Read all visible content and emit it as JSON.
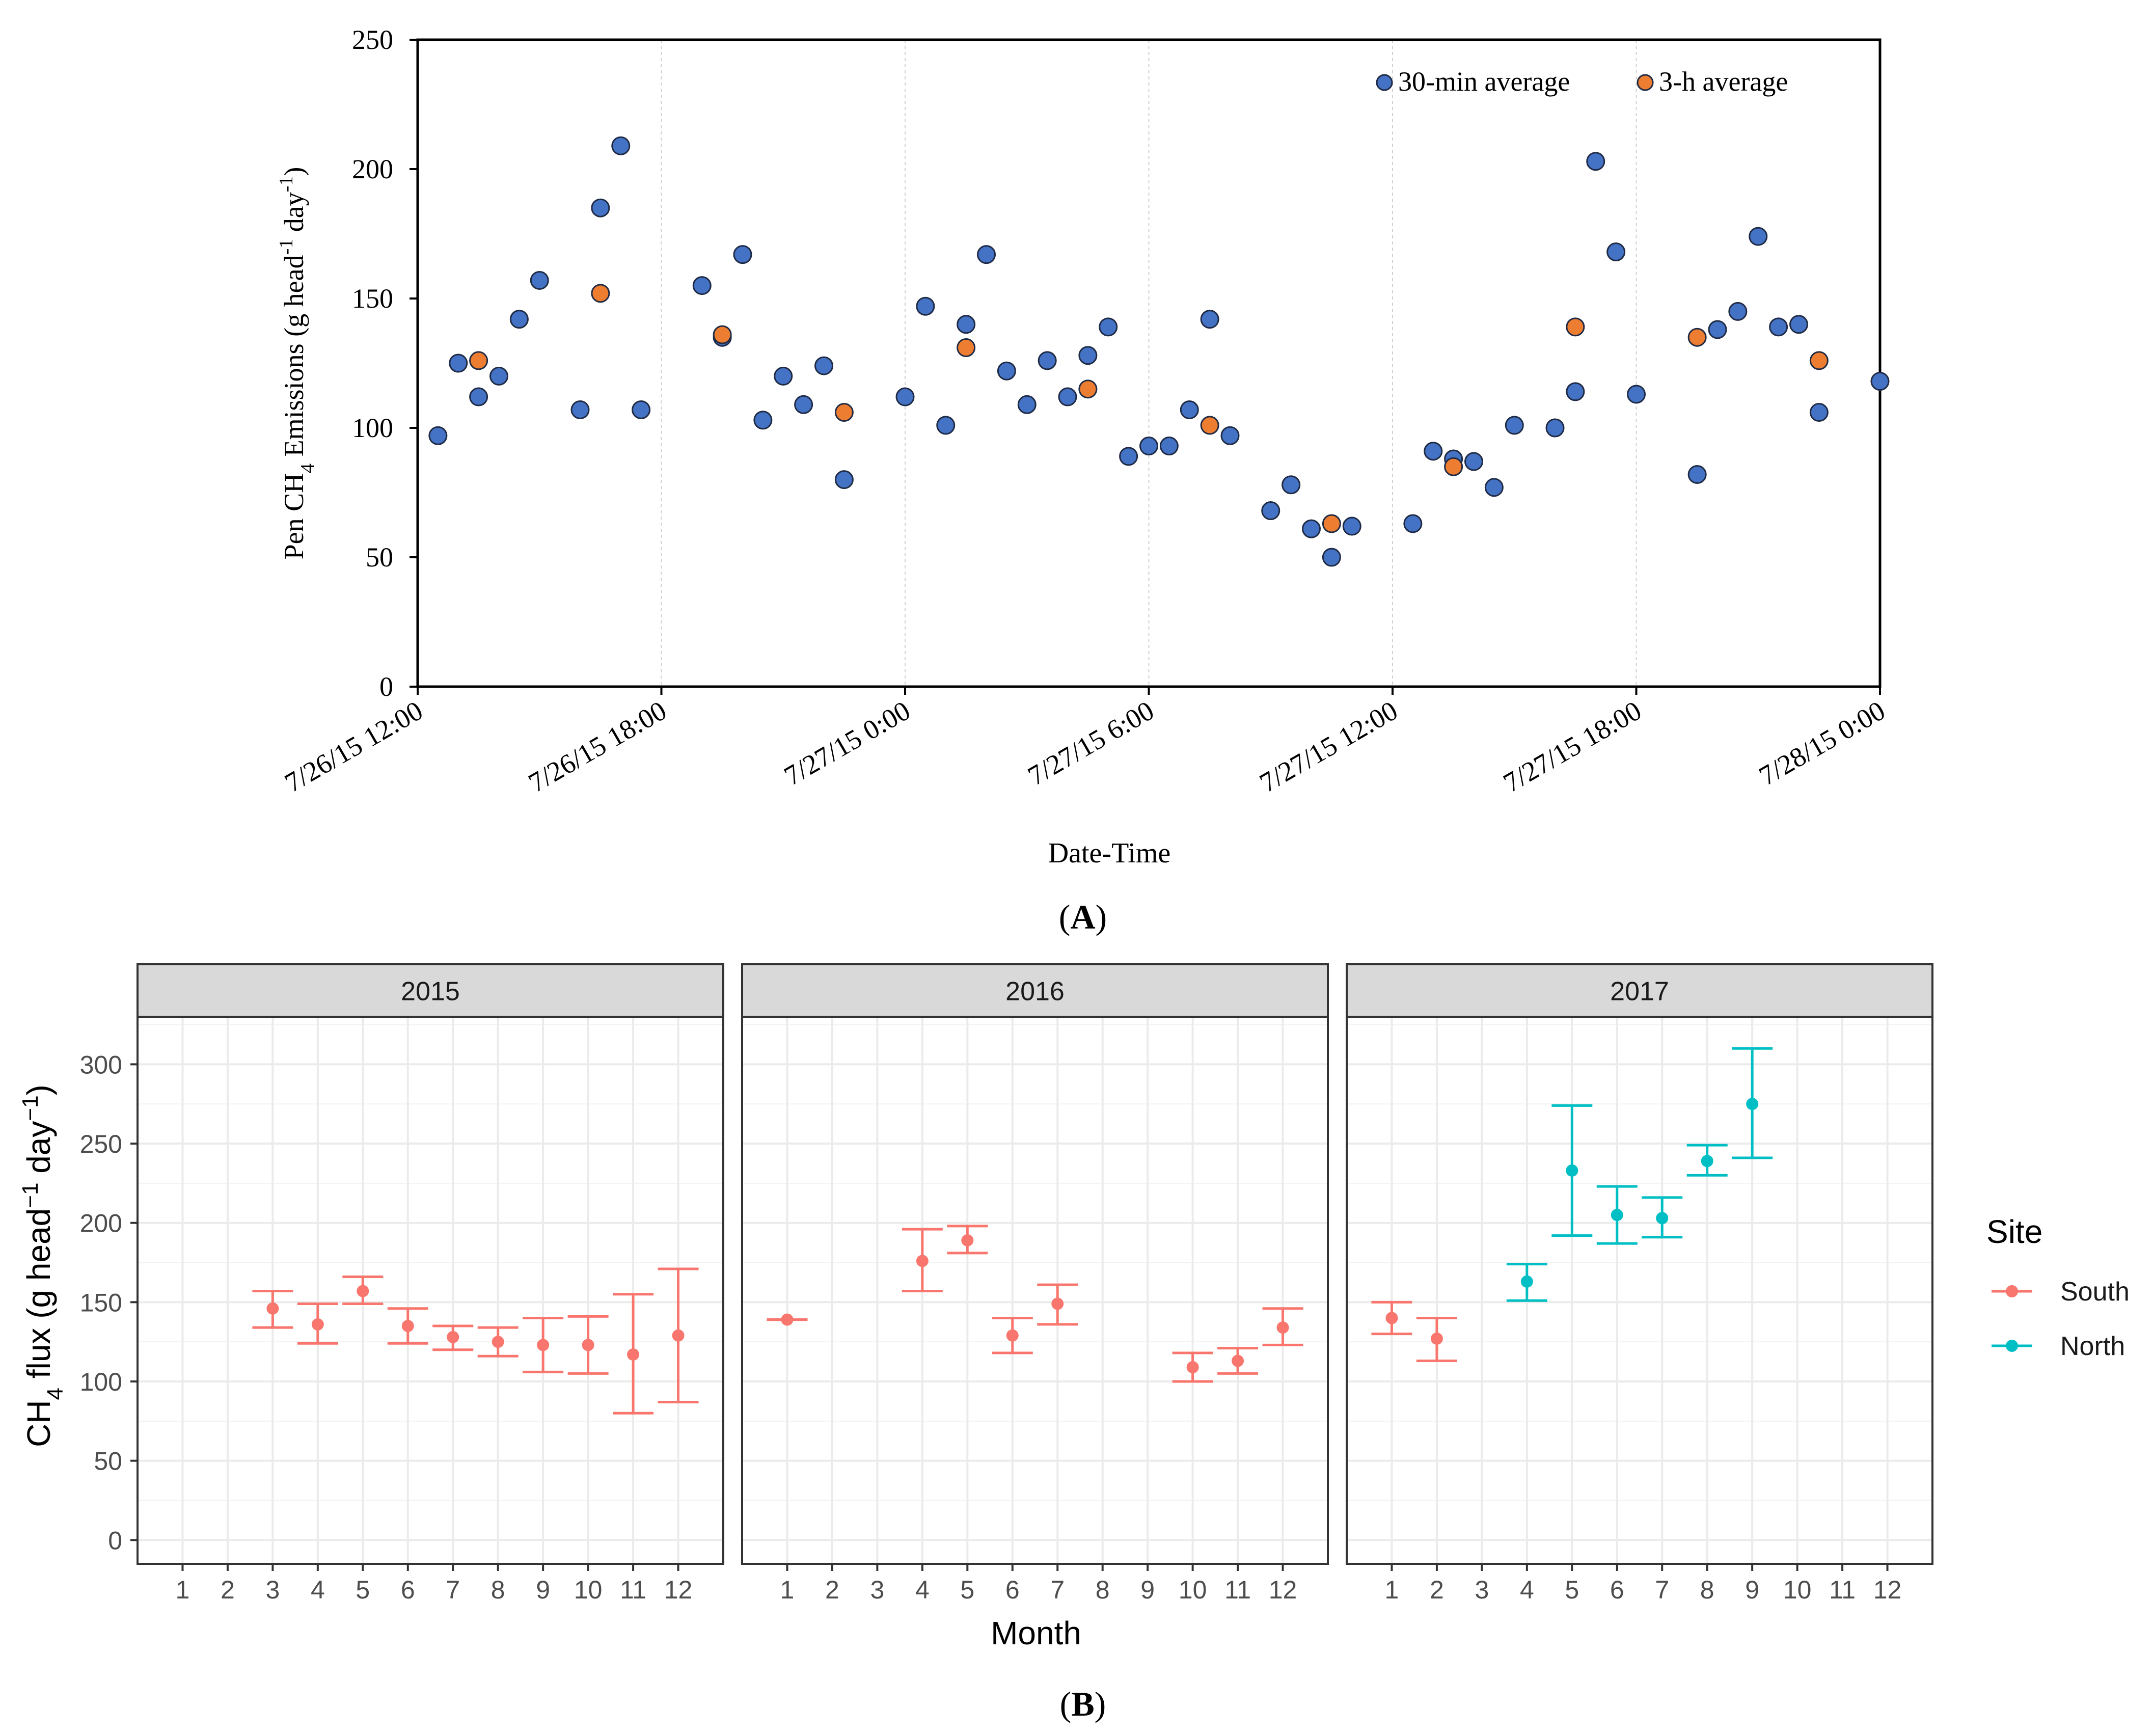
{
  "colors": {
    "blue_point": "#4472c4",
    "orange_point": "#ed7d31",
    "south": "#f8766d",
    "north": "#00bfc4",
    "strip_bg": "#d9d9d9",
    "grid": "#ebebeb"
  },
  "chart_data": [
    {
      "type": "scatter",
      "panel_label": "A",
      "xlabel": "Date-Time",
      "ylabel_prefix": "Pen CH",
      "ylabel_sub": "4",
      "ylabel_mid": "  Emissions (g head",
      "ylabel_sup1": "-1",
      "ylabel_mid2": " day",
      "ylabel_sup2": "-1",
      "ylabel_end": ")",
      "ylim": [
        0,
        250
      ],
      "yticks": [
        0,
        50,
        100,
        150,
        200,
        250
      ],
      "xlim_hours": [
        0,
        36
      ],
      "xticks": [
        {
          "h": 0,
          "label": "7/26/15 12:00"
        },
        {
          "h": 6,
          "label": "7/26/15 18:00"
        },
        {
          "h": 12,
          "label": "7/27/15 0:00"
        },
        {
          "h": 18,
          "label": "7/27/15 6:00"
        },
        {
          "h": 24,
          "label": "7/27/15 12:00"
        },
        {
          "h": 30,
          "label": "7/27/15 18:00"
        },
        {
          "h": 36,
          "label": "7/28/15 0:00"
        }
      ],
      "legend": [
        "30-min average",
        "3-h average"
      ],
      "series": [
        {
          "name": "30-min average",
          "points": [
            [
              0.5,
              97
            ],
            [
              1.0,
              125
            ],
            [
              1.5,
              112
            ],
            [
              2.0,
              120
            ],
            [
              2.5,
              142
            ],
            [
              3.0,
              157
            ],
            [
              4.0,
              107
            ],
            [
              4.5,
              185
            ],
            [
              5.0,
              209
            ],
            [
              5.5,
              107
            ],
            [
              7.0,
              155
            ],
            [
              7.5,
              135
            ],
            [
              8.0,
              167
            ],
            [
              8.5,
              103
            ],
            [
              9.0,
              120
            ],
            [
              9.5,
              109
            ],
            [
              10.0,
              124
            ],
            [
              10.5,
              80
            ],
            [
              12.0,
              112
            ],
            [
              12.5,
              147
            ],
            [
              13.0,
              101
            ],
            [
              13.5,
              140
            ],
            [
              14.0,
              167
            ],
            [
              14.5,
              122
            ],
            [
              15.0,
              109
            ],
            [
              15.5,
              126
            ],
            [
              16.0,
              112
            ],
            [
              16.5,
              128
            ],
            [
              17.0,
              139
            ],
            [
              17.5,
              89
            ],
            [
              18.0,
              93
            ],
            [
              18.5,
              93
            ],
            [
              19.0,
              107
            ],
            [
              19.5,
              142
            ],
            [
              20.0,
              97
            ],
            [
              21.0,
              68
            ],
            [
              21.5,
              78
            ],
            [
              22.0,
              61
            ],
            [
              22.5,
              50
            ],
            [
              23.0,
              62
            ],
            [
              24.5,
              63
            ],
            [
              25.0,
              91
            ],
            [
              25.5,
              88
            ],
            [
              26.0,
              87
            ],
            [
              26.5,
              77
            ],
            [
              27.0,
              101
            ],
            [
              28.0,
              100
            ],
            [
              28.5,
              114
            ],
            [
              29.0,
              203
            ],
            [
              29.5,
              168
            ],
            [
              30.0,
              113
            ],
            [
              31.5,
              82
            ],
            [
              32.0,
              138
            ],
            [
              32.5,
              145
            ],
            [
              33.0,
              174
            ],
            [
              33.5,
              139
            ],
            [
              34.0,
              140
            ],
            [
              34.5,
              106
            ],
            [
              36.0,
              118
            ]
          ]
        },
        {
          "name": "3-h average",
          "points": [
            [
              1.5,
              126
            ],
            [
              4.5,
              152
            ],
            [
              7.5,
              136
            ],
            [
              10.5,
              106
            ],
            [
              13.5,
              131
            ],
            [
              16.5,
              115
            ],
            [
              19.5,
              101
            ],
            [
              22.5,
              63
            ],
            [
              25.5,
              85
            ],
            [
              28.5,
              139
            ],
            [
              31.5,
              135
            ],
            [
              34.5,
              126
            ]
          ]
        }
      ]
    },
    {
      "type": "scatter",
      "panel_label": "B",
      "xlabel": "Month",
      "ylabel_main": "CH",
      "ylabel_sub": "4",
      "ylabel_mid": " flux (g head",
      "ylabel_sup1": "−1",
      "ylabel_mid2": " day",
      "ylabel_sup2": "−1",
      "ylabel_end": ")",
      "ylim": [
        -15,
        330
      ],
      "yticks": [
        0,
        50,
        100,
        150,
        200,
        250,
        300
      ],
      "xticks": [
        1,
        2,
        3,
        4,
        5,
        6,
        7,
        8,
        9,
        10,
        11,
        12
      ],
      "legend_title": "Site",
      "legend": [
        "South",
        "North"
      ],
      "facets": [
        {
          "title": "2015",
          "points": [
            {
              "month": 3,
              "mean": 146,
              "lo": 134,
              "hi": 157,
              "site": "South"
            },
            {
              "month": 4,
              "mean": 136,
              "lo": 124,
              "hi": 149,
              "site": "South"
            },
            {
              "month": 5,
              "mean": 157,
              "lo": 149,
              "hi": 166,
              "site": "South"
            },
            {
              "month": 6,
              "mean": 135,
              "lo": 124,
              "hi": 146,
              "site": "South"
            },
            {
              "month": 7,
              "mean": 128,
              "lo": 120,
              "hi": 135,
              "site": "South"
            },
            {
              "month": 8,
              "mean": 125,
              "lo": 116,
              "hi": 134,
              "site": "South"
            },
            {
              "month": 9,
              "mean": 123,
              "lo": 106,
              "hi": 140,
              "site": "South"
            },
            {
              "month": 10,
              "mean": 123,
              "lo": 105,
              "hi": 141,
              "site": "South"
            },
            {
              "month": 11,
              "mean": 117,
              "lo": 80,
              "hi": 155,
              "site": "South"
            },
            {
              "month": 12,
              "mean": 129,
              "lo": 87,
              "hi": 171,
              "site": "South"
            }
          ]
        },
        {
          "title": "2016",
          "points": [
            {
              "month": 1,
              "mean": 139,
              "lo": 139,
              "hi": 139,
              "site": "South"
            },
            {
              "month": 4,
              "mean": 176,
              "lo": 157,
              "hi": 196,
              "site": "South"
            },
            {
              "month": 5,
              "mean": 189,
              "lo": 181,
              "hi": 198,
              "site": "South"
            },
            {
              "month": 6,
              "mean": 129,
              "lo": 118,
              "hi": 140,
              "site": "South"
            },
            {
              "month": 7,
              "mean": 149,
              "lo": 136,
              "hi": 161,
              "site": "South"
            },
            {
              "month": 10,
              "mean": 109,
              "lo": 100,
              "hi": 118,
              "site": "South"
            },
            {
              "month": 11,
              "mean": 113,
              "lo": 105,
              "hi": 121,
              "site": "South"
            },
            {
              "month": 12,
              "mean": 134,
              "lo": 123,
              "hi": 146,
              "site": "South"
            }
          ]
        },
        {
          "title": "2017",
          "points": [
            {
              "month": 1,
              "mean": 140,
              "lo": 130,
              "hi": 150,
              "site": "South"
            },
            {
              "month": 2,
              "mean": 127,
              "lo": 113,
              "hi": 140,
              "site": "South"
            },
            {
              "month": 4,
              "mean": 163,
              "lo": 151,
              "hi": 174,
              "site": "North"
            },
            {
              "month": 5,
              "mean": 233,
              "lo": 192,
              "hi": 274,
              "site": "North"
            },
            {
              "month": 6,
              "mean": 205,
              "lo": 187,
              "hi": 223,
              "site": "North"
            },
            {
              "month": 7,
              "mean": 203,
              "lo": 191,
              "hi": 216,
              "site": "North"
            },
            {
              "month": 8,
              "mean": 239,
              "lo": 230,
              "hi": 249,
              "site": "North"
            },
            {
              "month": 9,
              "mean": 275,
              "lo": 241,
              "hi": 310,
              "site": "North"
            }
          ]
        }
      ]
    }
  ]
}
